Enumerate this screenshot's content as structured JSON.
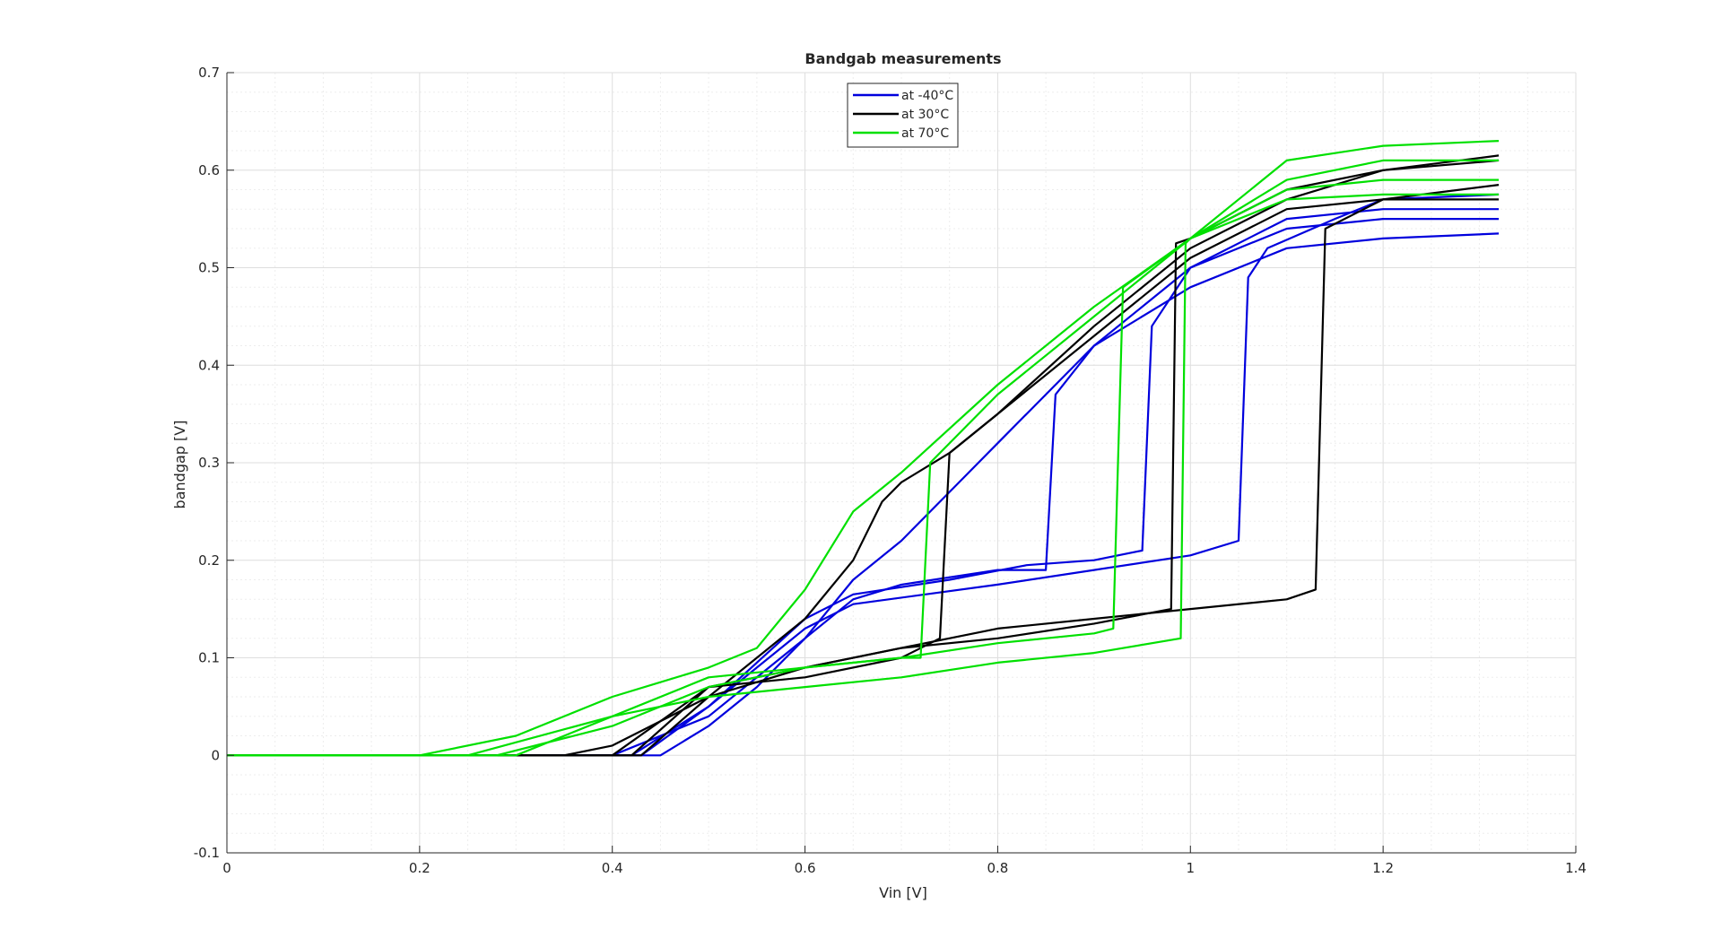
{
  "figure": {
    "background": "#ffffff"
  },
  "chart_data": {
    "type": "line",
    "title": "Bandgab measurements",
    "xlabel": "Vin [V]",
    "ylabel": "bandgap [V]",
    "xlim": [
      0,
      1.4
    ],
    "ylim": [
      -0.1,
      0.7
    ],
    "xticks": [
      0,
      0.2,
      0.4,
      0.6,
      0.8,
      1,
      1.2,
      1.4
    ],
    "yticks": [
      -0.1,
      0,
      0.1,
      0.2,
      0.3,
      0.4,
      0.5,
      0.6,
      0.7
    ],
    "grid": true,
    "minor_grid": true,
    "legend_position": "top-center",
    "colors": {
      "-40": "#0000dd",
      "30": "#000000",
      "70": "#00e000"
    },
    "series": [
      {
        "name": "at -40°C",
        "color": "#0000dd",
        "x": [
          0,
          0.3,
          0.4,
          0.45,
          0.5,
          0.55,
          0.6,
          0.65,
          0.7,
          0.75,
          0.8,
          0.9,
          1.0,
          1.1,
          1.2,
          1.32
        ],
        "y": [
          0,
          0,
          0,
          0,
          0.03,
          0.07,
          0.12,
          0.18,
          0.22,
          0.27,
          0.32,
          0.42,
          0.48,
          0.52,
          0.53,
          0.535
        ]
      },
      {
        "name": "at -40°C",
        "color": "#0000dd",
        "x": [
          0,
          0.4,
          0.5,
          0.6,
          0.65,
          0.7,
          0.8,
          0.85,
          0.86,
          0.9,
          1.0,
          1.1,
          1.2,
          1.32
        ],
        "y": [
          0,
          0,
          0.04,
          0.12,
          0.16,
          0.175,
          0.19,
          0.19,
          0.37,
          0.42,
          0.5,
          0.54,
          0.55,
          0.55
        ]
      },
      {
        "name": "at -40°C",
        "color": "#0000dd",
        "x": [
          0,
          0.43,
          0.5,
          0.6,
          0.65,
          0.75,
          0.83,
          0.9,
          0.95,
          0.96,
          1.0,
          1.1,
          1.2,
          1.32
        ],
        "y": [
          0,
          0,
          0.05,
          0.14,
          0.165,
          0.18,
          0.195,
          0.2,
          0.21,
          0.44,
          0.5,
          0.55,
          0.56,
          0.56
        ]
      },
      {
        "name": "at -40°C",
        "color": "#0000dd",
        "x": [
          0,
          0.42,
          0.5,
          0.6,
          0.65,
          0.8,
          0.9,
          1.0,
          1.05,
          1.06,
          1.08,
          1.15,
          1.2,
          1.32
        ],
        "y": [
          0,
          0,
          0.05,
          0.13,
          0.155,
          0.175,
          0.19,
          0.205,
          0.22,
          0.49,
          0.52,
          0.55,
          0.57,
          0.575
        ]
      },
      {
        "name": "at 30°C",
        "color": "#000000",
        "x": [
          0,
          0.35,
          0.4,
          0.5,
          0.6,
          0.65,
          0.68,
          0.7,
          0.75,
          0.8,
          0.9,
          1.0,
          1.1,
          1.2,
          1.32
        ],
        "y": [
          0,
          0,
          0.01,
          0.06,
          0.14,
          0.2,
          0.26,
          0.28,
          0.31,
          0.35,
          0.43,
          0.51,
          0.56,
          0.57,
          0.57
        ]
      },
      {
        "name": "at 30°C",
        "color": "#000000",
        "x": [
          0,
          0.4,
          0.5,
          0.6,
          0.7,
          0.74,
          0.75,
          0.8,
          0.9,
          1.0,
          1.1,
          1.2,
          1.32
        ],
        "y": [
          0,
          0,
          0.07,
          0.08,
          0.1,
          0.12,
          0.31,
          0.35,
          0.44,
          0.52,
          0.57,
          0.6,
          0.61
        ]
      },
      {
        "name": "at 30°C",
        "color": "#000000",
        "x": [
          0,
          0.42,
          0.5,
          0.6,
          0.7,
          0.8,
          0.9,
          0.98,
          0.985,
          1.0,
          1.1,
          1.2,
          1.32
        ],
        "y": [
          0,
          0,
          0.07,
          0.09,
          0.11,
          0.12,
          0.135,
          0.15,
          0.525,
          0.53,
          0.58,
          0.6,
          0.615
        ]
      },
      {
        "name": "at 30°C",
        "color": "#000000",
        "x": [
          0,
          0.43,
          0.5,
          0.6,
          0.7,
          0.8,
          0.9,
          1.0,
          1.1,
          1.13,
          1.14,
          1.2,
          1.32
        ],
        "y": [
          0,
          0,
          0.06,
          0.09,
          0.11,
          0.13,
          0.14,
          0.15,
          0.16,
          0.17,
          0.54,
          0.57,
          0.585
        ]
      },
      {
        "name": "at 70°C",
        "color": "#00e000",
        "x": [
          0,
          0.2,
          0.3,
          0.4,
          0.5,
          0.55,
          0.6,
          0.65,
          0.7,
          0.8,
          0.9,
          1.0,
          1.1,
          1.2,
          1.32
        ],
        "y": [
          0,
          0,
          0.02,
          0.06,
          0.09,
          0.11,
          0.17,
          0.25,
          0.29,
          0.38,
          0.46,
          0.53,
          0.61,
          0.625,
          0.63
        ]
      },
      {
        "name": "at 70°C",
        "color": "#00e000",
        "x": [
          0,
          0.25,
          0.4,
          0.5,
          0.6,
          0.7,
          0.72,
          0.73,
          0.8,
          0.9,
          1.0,
          1.1,
          1.2,
          1.32
        ],
        "y": [
          0,
          0,
          0.04,
          0.08,
          0.09,
          0.1,
          0.1,
          0.3,
          0.37,
          0.45,
          0.53,
          0.59,
          0.61,
          0.61
        ]
      },
      {
        "name": "at 70°C",
        "color": "#00e000",
        "x": [
          0,
          0.28,
          0.4,
          0.5,
          0.6,
          0.7,
          0.8,
          0.9,
          0.92,
          0.93,
          1.0,
          1.1,
          1.2,
          1.32
        ],
        "y": [
          0,
          0,
          0.03,
          0.07,
          0.09,
          0.1,
          0.115,
          0.125,
          0.13,
          0.48,
          0.53,
          0.58,
          0.59,
          0.59
        ]
      },
      {
        "name": "at 70°C",
        "color": "#00e000",
        "x": [
          0,
          0.3,
          0.4,
          0.5,
          0.6,
          0.7,
          0.8,
          0.9,
          0.99,
          0.995,
          1.0,
          1.1,
          1.2,
          1.32
        ],
        "y": [
          0,
          0,
          0.04,
          0.06,
          0.07,
          0.08,
          0.095,
          0.105,
          0.12,
          0.525,
          0.53,
          0.57,
          0.575,
          0.575
        ]
      }
    ],
    "legend": [
      {
        "label": "at -40°C",
        "color": "#0000dd"
      },
      {
        "label": "at 30°C",
        "color": "#000000"
      },
      {
        "label": "at 70°C",
        "color": "#00e000"
      }
    ]
  }
}
